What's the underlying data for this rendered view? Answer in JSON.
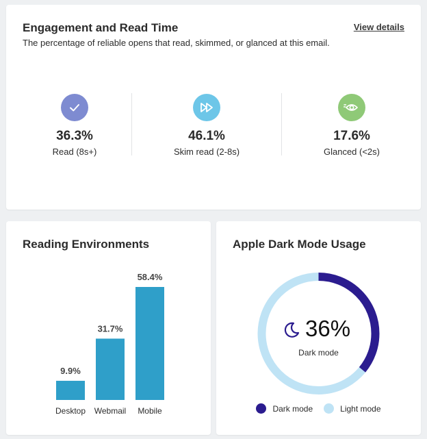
{
  "engagement": {
    "title": "Engagement and Read Time",
    "subtitle": "The percentage of reliable opens that read, skimmed, or glanced at this email.",
    "view_details": "View details",
    "metrics": [
      {
        "icon": "check-icon",
        "color": "#7e8bd1",
        "value": "36.3%",
        "label": "Read (8s+)"
      },
      {
        "icon": "fast-forward-icon",
        "color": "#6dc6e8",
        "value": "46.1%",
        "label": "Skim read (2-8s)"
      },
      {
        "icon": "eye-icon",
        "color": "#8fc977",
        "value": "17.6%",
        "label": "Glanced (<2s)"
      }
    ]
  },
  "environments": {
    "title": "Reading Environments",
    "bar_color": "#2f9fc9"
  },
  "dark_mode": {
    "title": "Apple Dark Mode Usage",
    "value": "36%",
    "caption": "Dark mode",
    "dark_color": "#2b1c8f",
    "light_color": "#bfe3f5",
    "legend": [
      {
        "label": "Dark mode",
        "color": "#2b1c8f"
      },
      {
        "label": "Light mode",
        "color": "#bfe3f5"
      }
    ]
  },
  "chart_data": [
    {
      "type": "bar",
      "title": "Reading Environments",
      "categories": [
        "Desktop",
        "Webmail",
        "Mobile"
      ],
      "values": [
        9.9,
        31.7,
        58.4
      ],
      "value_labels": [
        "9.9%",
        "31.7%",
        "58.4%"
      ],
      "ylim": [
        0,
        58.4
      ],
      "grid": false
    },
    {
      "type": "pie",
      "title": "Apple Dark Mode Usage",
      "categories": [
        "Dark mode",
        "Light mode"
      ],
      "values": [
        36,
        64
      ],
      "legend": "bottom"
    }
  ]
}
